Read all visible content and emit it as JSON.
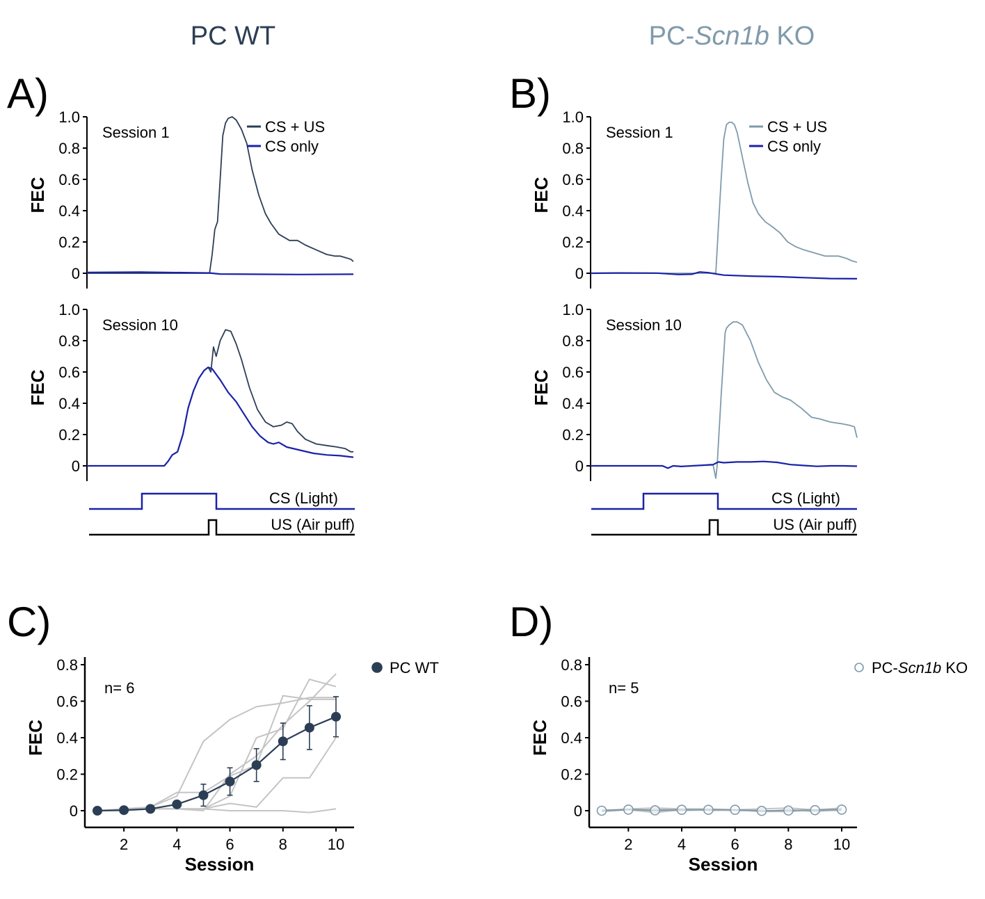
{
  "colors": {
    "wt": "#2c3e55",
    "ko": "#7f9aab",
    "cs_only": "#1a22a8",
    "individual": "#c4c4c4",
    "us": "#000000"
  },
  "group_titles": {
    "wt": "PC WT",
    "ko_prefix": "PC-",
    "ko_italic": "Scn1b",
    "ko_suffix": " KO"
  },
  "panel_letters": [
    "A)",
    "B)",
    "C)",
    "D)"
  ],
  "stimulus": {
    "cs_label": "CS (Light)",
    "us_label": "US (Air puff)"
  },
  "chart_data": [
    {
      "id": "A1",
      "type": "line",
      "group": "PC WT",
      "annotation": "Session 1",
      "ylabel": "FEC",
      "yticks": [
        "1.0",
        "0.8",
        "0.6",
        "0.4",
        "0.2",
        "0"
      ],
      "ylim": [
        -0.1,
        1.0
      ],
      "legend": [
        "CS + US",
        "CS only"
      ],
      "legend_position": "top-right",
      "series": [
        {
          "name": "CS + US",
          "t": [
            0,
            0.46,
            0.47,
            0.48,
            0.49,
            0.5,
            0.51,
            0.52,
            0.53,
            0.545,
            0.56,
            0.58,
            0.6,
            0.62,
            0.645,
            0.67,
            0.69,
            0.72,
            0.76,
            0.79,
            0.82,
            0.86,
            0.9,
            0.93,
            0.95,
            0.97,
            0.99,
            1.0
          ],
          "y": [
            0,
            0,
            0.12,
            0.28,
            0.33,
            0.6,
            0.88,
            0.96,
            0.99,
            1.0,
            0.98,
            0.92,
            0.83,
            0.66,
            0.5,
            0.38,
            0.32,
            0.25,
            0.21,
            0.21,
            0.18,
            0.15,
            0.12,
            0.11,
            0.11,
            0.1,
            0.09,
            0.075
          ]
        },
        {
          "name": "CS only",
          "t": [
            0,
            0.2,
            0.46,
            0.5,
            0.8,
            1.0
          ],
          "y": [
            0.005,
            0.007,
            0.002,
            -0.005,
            -0.008,
            -0.006
          ]
        }
      ]
    },
    {
      "id": "A10",
      "type": "line",
      "group": "PC WT",
      "annotation": "Session 10",
      "ylabel": "FEC",
      "yticks": [
        "1.0",
        "0.8",
        "0.6",
        "0.4",
        "0.2",
        "0"
      ],
      "ylim": [
        -0.1,
        1.0
      ],
      "series": [
        {
          "name": "CS + US",
          "t": [
            0,
            0.29,
            0.305,
            0.32,
            0.34,
            0.36,
            0.38,
            0.4,
            0.42,
            0.44,
            0.455,
            0.465,
            0.475,
            0.485,
            0.5,
            0.52,
            0.54,
            0.56,
            0.58,
            0.61,
            0.64,
            0.67,
            0.7,
            0.73,
            0.75,
            0.77,
            0.79,
            0.82,
            0.86,
            0.9,
            0.94,
            0.97,
            0.99,
            1.0
          ],
          "y": [
            0,
            0,
            0.03,
            0.07,
            0.09,
            0.2,
            0.37,
            0.48,
            0.56,
            0.61,
            0.63,
            0.6,
            0.76,
            0.7,
            0.8,
            0.87,
            0.86,
            0.78,
            0.68,
            0.5,
            0.36,
            0.28,
            0.25,
            0.26,
            0.28,
            0.27,
            0.22,
            0.17,
            0.14,
            0.13,
            0.12,
            0.11,
            0.09,
            0.09
          ]
        },
        {
          "name": "CS only",
          "t": [
            0,
            0.29,
            0.305,
            0.32,
            0.34,
            0.36,
            0.38,
            0.4,
            0.42,
            0.44,
            0.455,
            0.47,
            0.5,
            0.53,
            0.56,
            0.59,
            0.62,
            0.65,
            0.68,
            0.7,
            0.72,
            0.75,
            0.8,
            0.85,
            0.9,
            0.95,
            1.0
          ],
          "y": [
            0,
            0,
            0.03,
            0.07,
            0.09,
            0.2,
            0.37,
            0.48,
            0.56,
            0.61,
            0.63,
            0.62,
            0.55,
            0.47,
            0.41,
            0.33,
            0.25,
            0.19,
            0.15,
            0.14,
            0.15,
            0.12,
            0.1,
            0.08,
            0.07,
            0.065,
            0.055
          ]
        }
      ]
    },
    {
      "id": "B1",
      "type": "line",
      "group": "PC-Scn1b KO",
      "annotation": "Session 1",
      "ylabel": "FEC",
      "yticks": [
        "1.0",
        "0.8",
        "0.6",
        "0.4",
        "0.2",
        "0"
      ],
      "ylim": [
        -0.1,
        1.0
      ],
      "legend": [
        "CS + US",
        "CS only"
      ],
      "legend_position": "top-right",
      "series": [
        {
          "name": "CS + US",
          "t": [
            0,
            0.47,
            0.48,
            0.49,
            0.5,
            0.51,
            0.52,
            0.53,
            0.54,
            0.55,
            0.57,
            0.59,
            0.61,
            0.63,
            0.655,
            0.68,
            0.71,
            0.74,
            0.77,
            0.8,
            0.84,
            0.88,
            0.9,
            0.93,
            0.96,
            0.98,
            1.0
          ],
          "y": [
            0,
            0,
            0.3,
            0.6,
            0.86,
            0.95,
            0.965,
            0.965,
            0.95,
            0.9,
            0.74,
            0.58,
            0.45,
            0.38,
            0.33,
            0.3,
            0.26,
            0.2,
            0.17,
            0.15,
            0.13,
            0.11,
            0.11,
            0.11,
            0.095,
            0.08,
            0.07
          ]
        },
        {
          "name": "CS only",
          "t": [
            0,
            0.1,
            0.25,
            0.33,
            0.38,
            0.41,
            0.44,
            0.47,
            0.5,
            0.6,
            0.7,
            0.8,
            0.9,
            1.0
          ],
          "y": [
            0,
            0.002,
            0.001,
            -0.008,
            -0.006,
            0.008,
            0.004,
            -0.004,
            -0.012,
            -0.018,
            -0.022,
            -0.028,
            -0.034,
            -0.035
          ]
        }
      ]
    },
    {
      "id": "B10",
      "type": "line",
      "group": "PC-Scn1b KO",
      "annotation": "Session 10",
      "ylabel": "FEC",
      "yticks": [
        "1.0",
        "0.8",
        "0.6",
        "0.4",
        "0.2",
        "0"
      ],
      "ylim": [
        -0.1,
        1.0
      ],
      "series": [
        {
          "name": "CS + US",
          "t": [
            0,
            0.27,
            0.29,
            0.31,
            0.34,
            0.46,
            0.47,
            0.475,
            0.49,
            0.505,
            0.51,
            0.52,
            0.535,
            0.55,
            0.57,
            0.6,
            0.63,
            0.66,
            0.69,
            0.72,
            0.75,
            0.79,
            0.83,
            0.86,
            0.9,
            0.94,
            0.97,
            0.99,
            1.0
          ],
          "y": [
            0,
            0,
            -0.015,
            0,
            -0.004,
            0.005,
            -0.08,
            0,
            0.45,
            0.85,
            0.88,
            0.9,
            0.92,
            0.92,
            0.9,
            0.8,
            0.66,
            0.55,
            0.47,
            0.44,
            0.42,
            0.37,
            0.31,
            0.3,
            0.28,
            0.27,
            0.26,
            0.25,
            0.18
          ]
        },
        {
          "name": "CS only",
          "t": [
            0,
            0.27,
            0.29,
            0.31,
            0.34,
            0.46,
            0.48,
            0.5,
            0.55,
            0.6,
            0.65,
            0.7,
            0.75,
            0.8,
            0.85,
            0.9,
            0.95,
            1.0
          ],
          "y": [
            0,
            0,
            -0.015,
            0,
            -0.004,
            0.008,
            0.025,
            0.02,
            0.025,
            0.025,
            0.028,
            0.022,
            0.008,
            0.002,
            -0.003,
            0,
            0,
            -0.002
          ]
        }
      ]
    },
    {
      "id": "C",
      "type": "line",
      "group": "PC WT",
      "xlabel": "Session",
      "ylabel": "FEC",
      "xticks": [
        2,
        4,
        6,
        8,
        10
      ],
      "yticks": [
        "0.8",
        "0.6",
        "0.4",
        "0.2",
        "0"
      ],
      "xlim": [
        0.5,
        10.7
      ],
      "ylim": [
        -0.09,
        0.84
      ],
      "annotation": "n= 6",
      "legend": [
        "PC WT"
      ],
      "legend_position": "top-right",
      "x": [
        1,
        2,
        3,
        4,
        5,
        6,
        7,
        8,
        9,
        10
      ],
      "mean": [
        0.0,
        0.003,
        0.01,
        0.035,
        0.085,
        0.16,
        0.25,
        0.38,
        0.455,
        0.515
      ],
      "sem": [
        0,
        0,
        0,
        0,
        0.06,
        0.075,
        0.09,
        0.1,
        0.12,
        0.11
      ],
      "individuals": [
        [
          0,
          0.01,
          0.02,
          0.08,
          0.38,
          0.5,
          0.57,
          0.59,
          0.62,
          0.62
        ],
        [
          0,
          0.01,
          0.02,
          0.1,
          0.1,
          0.19,
          0.25,
          0.63,
          0.61,
          0.61
        ],
        [
          0,
          0,
          0.01,
          0.01,
          0.01,
          0.08,
          0.4,
          0.45,
          0.72,
          0.68
        ],
        [
          0,
          0,
          0.01,
          0.01,
          0,
          0.2,
          0.3,
          0.47,
          0.6,
          0.75
        ],
        [
          0,
          0,
          0.01,
          0.01,
          0.01,
          0.04,
          0.02,
          0.18,
          0.18,
          0.4
        ],
        [
          0,
          0,
          0.01,
          0.01,
          0.01,
          0,
          0,
          0,
          -0.01,
          0.01
        ]
      ]
    },
    {
      "id": "D",
      "type": "line",
      "group": "PC-Scn1b KO",
      "xlabel": "Session",
      "ylabel": "FEC",
      "xticks": [
        2,
        4,
        6,
        8,
        10
      ],
      "yticks": [
        "0.8",
        "0.6",
        "0.4",
        "0.2",
        "0"
      ],
      "xlim": [
        0.5,
        10.7
      ],
      "ylim": [
        -0.09,
        0.84
      ],
      "annotation": "n= 5",
      "legend_prefix": "PC-",
      "legend_italic": "Scn1b",
      "legend_suffix": " KO",
      "legend_position": "top-right",
      "x": [
        1,
        2,
        3,
        4,
        5,
        6,
        7,
        8,
        9,
        10
      ],
      "mean": [
        0.0,
        0.006,
        0.002,
        0.005,
        0.005,
        0.005,
        -0.001,
        0.001,
        0.003,
        0.006
      ],
      "sem": [
        0,
        0,
        0,
        0,
        0,
        0,
        0,
        0,
        0,
        0
      ],
      "individuals": [
        [
          0,
          0.01,
          0.015,
          0.01,
          0.01,
          0.005,
          0.01,
          0.015,
          0.005,
          0.015
        ],
        [
          0,
          0.005,
          -0.01,
          0.005,
          0.005,
          0.005,
          -0.005,
          -0.005,
          0.005,
          0.01
        ],
        [
          -0.005,
          0.005,
          0,
          0,
          0.005,
          0.005,
          -0.005,
          0.005,
          -0.005,
          0.005
        ],
        [
          0,
          0.005,
          0.005,
          0.01,
          0,
          0.005,
          0,
          -0.005,
          0.005,
          0
        ],
        [
          0.005,
          0.005,
          0,
          0.005,
          0.005,
          0,
          0,
          0,
          0.005,
          0.005
        ]
      ]
    }
  ]
}
